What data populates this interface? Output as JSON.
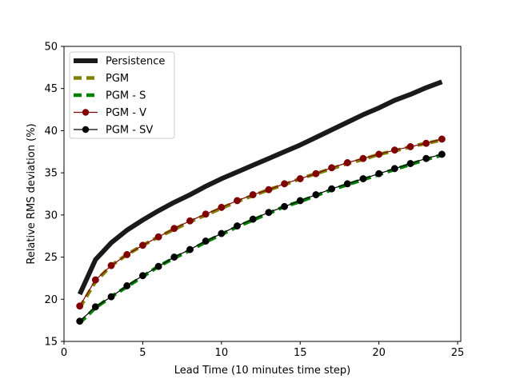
{
  "chart_data": {
    "type": "line",
    "title": "",
    "xlabel": "Lead Time (10 minutes time step)",
    "ylabel": "Relative RMS deviation (%)",
    "xlim": [
      0,
      25.2
    ],
    "ylim": [
      15,
      50
    ],
    "xticks": [
      0,
      5,
      10,
      15,
      20,
      25
    ],
    "yticks": [
      15,
      20,
      25,
      30,
      35,
      40,
      45,
      50
    ],
    "grid": false,
    "legend_position": "upper-left",
    "x": [
      1,
      2,
      3,
      4,
      5,
      6,
      7,
      8,
      9,
      10,
      11,
      12,
      13,
      14,
      15,
      16,
      17,
      18,
      19,
      20,
      21,
      22,
      23,
      24
    ],
    "series": [
      {
        "name": "Persistence",
        "color": "#1a1a1a",
        "style": "solid-thick",
        "marker": "none",
        "values": [
          20.6,
          24.7,
          26.7,
          28.2,
          29.4,
          30.5,
          31.5,
          32.4,
          33.4,
          34.3,
          35.1,
          35.9,
          36.7,
          37.5,
          38.3,
          39.2,
          40.1,
          41.0,
          41.9,
          42.7,
          43.6,
          44.3,
          45.1,
          45.8
        ]
      },
      {
        "name": "PGM",
        "color": "#808000",
        "style": "dashed-thick",
        "marker": "none",
        "values": [
          19.0,
          22.1,
          24.0,
          25.3,
          26.4,
          27.4,
          28.3,
          29.2,
          30.0,
          30.8,
          31.6,
          32.3,
          33.0,
          33.6,
          34.3,
          34.9,
          35.5,
          36.1,
          36.6,
          37.2,
          37.6,
          38.1,
          38.5,
          38.9
        ]
      },
      {
        "name": "PGM - S",
        "color": "#008000",
        "style": "dashed-thick",
        "marker": "none",
        "values": [
          17.2,
          19.0,
          20.3,
          21.5,
          22.7,
          23.9,
          24.9,
          25.8,
          26.8,
          27.7,
          28.6,
          29.4,
          30.2,
          31.0,
          31.6,
          32.3,
          33.0,
          33.6,
          34.2,
          34.8,
          35.4,
          36.0,
          36.6,
          37.1
        ]
      },
      {
        "name": "PGM - V",
        "color": "#800000",
        "style": "solid-thin",
        "marker": "circle",
        "values": [
          19.2,
          22.3,
          24.0,
          25.3,
          26.4,
          27.4,
          28.4,
          29.3,
          30.1,
          30.9,
          31.7,
          32.4,
          33.0,
          33.7,
          34.3,
          34.9,
          35.6,
          36.2,
          36.7,
          37.2,
          37.7,
          38.1,
          38.5,
          39.0
        ]
      },
      {
        "name": "PGM - SV",
        "color": "#000000",
        "style": "solid-thin",
        "marker": "circle",
        "values": [
          17.4,
          19.1,
          20.3,
          21.6,
          22.8,
          23.9,
          25.0,
          25.9,
          26.9,
          27.8,
          28.7,
          29.5,
          30.3,
          31.0,
          31.7,
          32.4,
          33.1,
          33.7,
          34.3,
          34.9,
          35.5,
          36.1,
          36.7,
          37.2
        ]
      }
    ]
  }
}
